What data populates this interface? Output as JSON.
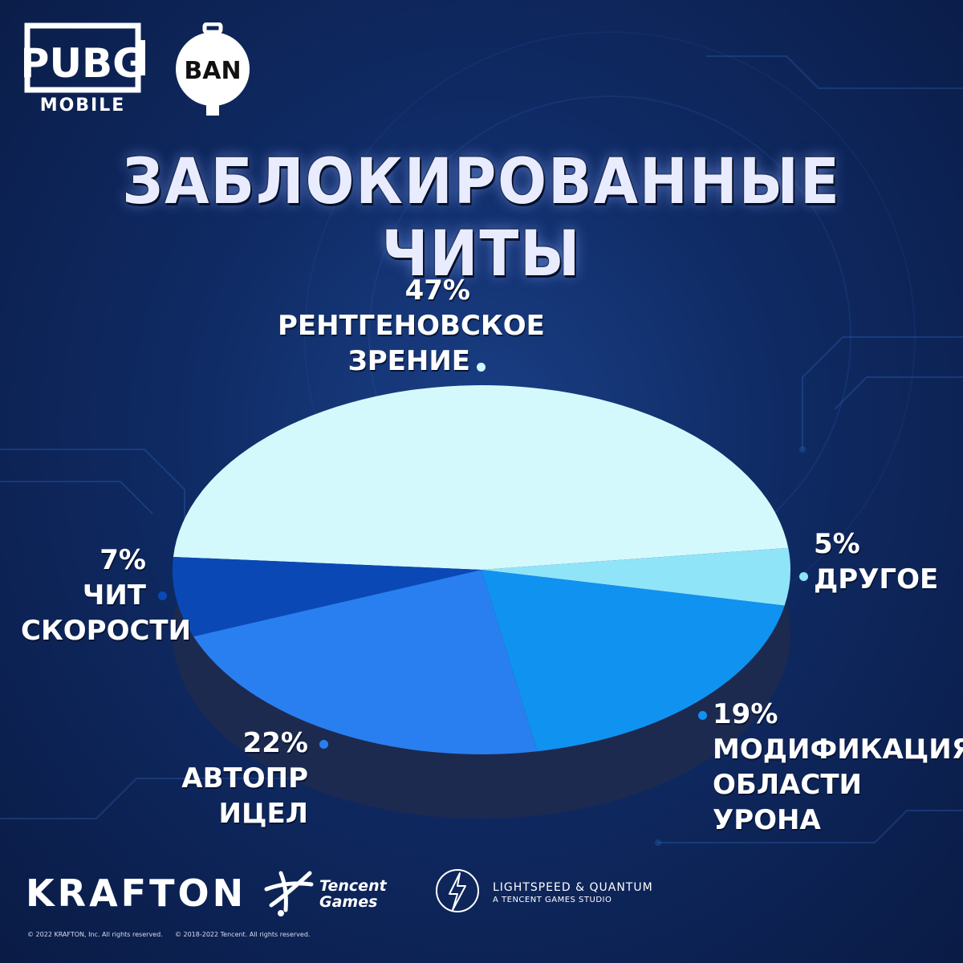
{
  "logos": {
    "pubg": "PUBG",
    "pubg_sub": "MOBILE",
    "ban": "BAN",
    "krafton": "KRAFTON",
    "tencent_line1": "Tencent",
    "tencent_line2": "Games",
    "lightspeed": "LIGHTSPEED & QUANTUM",
    "lightspeed_sub": "A TENCENT GAMES STUDIO"
  },
  "copyright": {
    "krafton": "© 2022 KRAFTON, Inc. All rights reserved.",
    "tencent": "© 2018-2022 Tencent. All rights reserved."
  },
  "colors": {
    "background": "#0f2a63",
    "xray": "#d4f9fd",
    "other": "#8fe4f8",
    "damage": "#1092f0",
    "aim": "#2a7ff0",
    "speed": "#0a49b5",
    "side": "#1d2a50"
  },
  "chart_data": {
    "type": "pie",
    "title": "ЗАБЛОКИРОВАННЫЕ ЧИТЫ",
    "slices": [
      {
        "pct_label": "47%",
        "name_lines": [
          "РЕНТГЕНОВСКОЕ",
          "ЗРЕНИЕ"
        ],
        "value": 47,
        "color": "#d4f9fd"
      },
      {
        "pct_label": "5%",
        "name_lines": [
          "ДРУГОЕ"
        ],
        "value": 5,
        "color": "#8fe4f8"
      },
      {
        "pct_label": "19%",
        "name_lines": [
          "МОДИФИКАЦИЯ",
          "ОБЛАСТИ УРОНА"
        ],
        "value": 19,
        "color": "#1092f0"
      },
      {
        "pct_label": "22%",
        "name_lines": [
          "АВТОПР ИЦЕЛ"
        ],
        "value": 22,
        "color": "#2a7ff0"
      },
      {
        "pct_label": "7%",
        "name_lines": [
          "ЧИТ",
          "СКОРОСТИ"
        ],
        "value": 7,
        "color": "#0a49b5"
      }
    ]
  }
}
